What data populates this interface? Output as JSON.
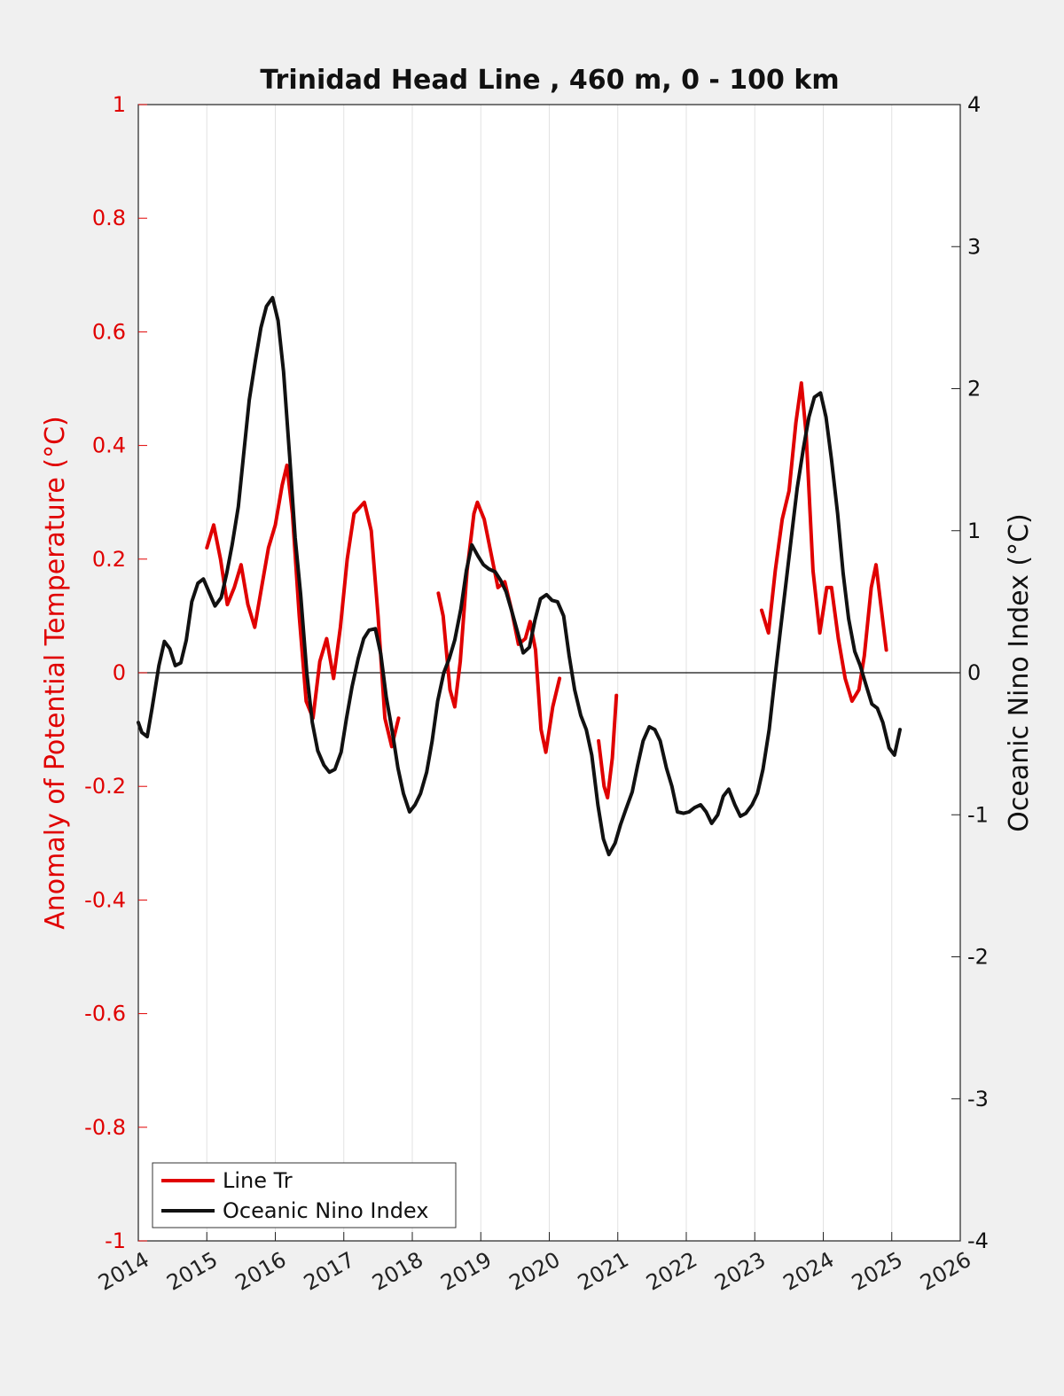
{
  "chart_data": {
    "type": "line",
    "title": "Trinidad Head Line , 460 m, 0 - 100 km",
    "ylabel_left": "Anomaly of Potential Temperature (°C)",
    "ylabel_right": "Oceanic Nino Index (°C)",
    "xlabel": "",
    "xlim": [
      2014,
      2026
    ],
    "ylim_left": [
      -1,
      1
    ],
    "ylim_right": [
      -4,
      4
    ],
    "x_ticks": [
      "2014",
      "2015",
      "2016",
      "2017",
      "2018",
      "2019",
      "2020",
      "2021",
      "2022",
      "2023",
      "2024",
      "2025",
      "2026"
    ],
    "y_ticks_left": [
      "1",
      "0.8",
      "0.6",
      "0.4",
      "0.2",
      "0",
      "-0.2",
      "-0.4",
      "-0.6",
      "-0.8",
      "-1"
    ],
    "y_ticks_right": [
      "4",
      "3",
      "2",
      "1",
      "0",
      "-1",
      "-2",
      "-3",
      "-4"
    ],
    "grid": "vertical",
    "zero_line": true,
    "legend_position": "bottom-left",
    "series": [
      {
        "name": "Line Tr",
        "axis": "left",
        "color": "#e00000",
        "segments": [
          [
            [
              2015.0,
              0.22
            ],
            [
              2015.1,
              0.26
            ],
            [
              2015.2,
              0.2
            ],
            [
              2015.3,
              0.12
            ],
            [
              2015.4,
              0.15
            ],
            [
              2015.5,
              0.19
            ],
            [
              2015.6,
              0.12
            ],
            [
              2015.7,
              0.08
            ],
            [
              2015.8,
              0.15
            ],
            [
              2015.9,
              0.22
            ],
            [
              2016.0,
              0.26
            ],
            [
              2016.1,
              0.33
            ],
            [
              2016.17,
              0.365
            ],
            [
              2016.25,
              0.28
            ],
            [
              2016.35,
              0.1
            ],
            [
              2016.45,
              -0.05
            ],
            [
              2016.55,
              -0.08
            ],
            [
              2016.65,
              0.02
            ],
            [
              2016.75,
              0.06
            ],
            [
              2016.85,
              -0.01
            ],
            [
              2016.95,
              0.08
            ],
            [
              2017.05,
              0.2
            ],
            [
              2017.15,
              0.28
            ],
            [
              2017.3,
              0.3
            ],
            [
              2017.4,
              0.25
            ],
            [
              2017.5,
              0.1
            ],
            [
              2017.6,
              -0.08
            ],
            [
              2017.7,
              -0.13
            ],
            [
              2017.8,
              -0.08
            ]
          ],
          [
            [
              2018.38,
              0.14
            ],
            [
              2018.45,
              0.1
            ],
            [
              2018.55,
              -0.03
            ],
            [
              2018.62,
              -0.06
            ],
            [
              2018.7,
              0.02
            ],
            [
              2018.8,
              0.18
            ],
            [
              2018.9,
              0.28
            ],
            [
              2018.95,
              0.3
            ],
            [
              2019.05,
              0.27
            ],
            [
              2019.15,
              0.21
            ],
            [
              2019.25,
              0.15
            ],
            [
              2019.35,
              0.16
            ],
            [
              2019.45,
              0.11
            ],
            [
              2019.55,
              0.05
            ],
            [
              2019.65,
              0.06
            ],
            [
              2019.72,
              0.09
            ],
            [
              2019.8,
              0.04
            ],
            [
              2019.88,
              -0.1
            ],
            [
              2019.95,
              -0.14
            ],
            [
              2020.05,
              -0.06
            ],
            [
              2020.15,
              -0.01
            ]
          ],
          [
            [
              2020.72,
              -0.12
            ],
            [
              2020.8,
              -0.2
            ],
            [
              2020.85,
              -0.22
            ],
            [
              2020.92,
              -0.15
            ],
            [
              2020.98,
              -0.04
            ]
          ],
          [
            [
              2023.1,
              0.11
            ],
            [
              2023.2,
              0.07
            ],
            [
              2023.3,
              0.18
            ],
            [
              2023.4,
              0.27
            ],
            [
              2023.5,
              0.32
            ],
            [
              2023.6,
              0.44
            ],
            [
              2023.68,
              0.51
            ],
            [
              2023.75,
              0.42
            ],
            [
              2023.85,
              0.18
            ],
            [
              2023.95,
              0.07
            ],
            [
              2024.05,
              0.15
            ],
            [
              2024.12,
              0.15
            ],
            [
              2024.22,
              0.06
            ],
            [
              2024.32,
              -0.01
            ],
            [
              2024.42,
              -0.05
            ],
            [
              2024.52,
              -0.03
            ],
            [
              2024.6,
              0.03
            ],
            [
              2024.7,
              0.15
            ],
            [
              2024.77,
              0.19
            ],
            [
              2024.84,
              0.12
            ],
            [
              2024.92,
              0.04
            ]
          ]
        ]
      },
      {
        "name": "Oceanic Nino Index",
        "axis": "right",
        "color": "#111111",
        "segments": [
          [
            [
              2014.0,
              -0.35
            ],
            [
              2014.05,
              -0.42
            ],
            [
              2014.13,
              -0.45
            ],
            [
              2014.2,
              -0.25
            ],
            [
              2014.3,
              0.05
            ],
            [
              2014.38,
              0.22
            ],
            [
              2014.46,
              0.17
            ],
            [
              2014.54,
              0.05
            ],
            [
              2014.62,
              0.07
            ],
            [
              2014.7,
              0.23
            ],
            [
              2014.78,
              0.5
            ],
            [
              2014.87,
              0.63
            ],
            [
              2014.95,
              0.66
            ],
            [
              2015.04,
              0.56
            ],
            [
              2015.12,
              0.47
            ],
            [
              2015.21,
              0.53
            ],
            [
              2015.29,
              0.7
            ],
            [
              2015.37,
              0.9
            ],
            [
              2015.46,
              1.17
            ],
            [
              2015.54,
              1.55
            ],
            [
              2015.62,
              1.92
            ],
            [
              2015.71,
              2.2
            ],
            [
              2015.79,
              2.43
            ],
            [
              2015.87,
              2.58
            ],
            [
              2015.96,
              2.64
            ],
            [
              2016.04,
              2.48
            ],
            [
              2016.12,
              2.12
            ],
            [
              2016.21,
              1.52
            ],
            [
              2016.29,
              0.95
            ],
            [
              2016.37,
              0.55
            ],
            [
              2016.46,
              0.0
            ],
            [
              2016.54,
              -0.35
            ],
            [
              2016.62,
              -0.55
            ],
            [
              2016.71,
              -0.65
            ],
            [
              2016.79,
              -0.7
            ],
            [
              2016.87,
              -0.68
            ],
            [
              2016.96,
              -0.56
            ],
            [
              2017.04,
              -0.32
            ],
            [
              2017.12,
              -0.1
            ],
            [
              2017.21,
              0.1
            ],
            [
              2017.29,
              0.24
            ],
            [
              2017.37,
              0.3
            ],
            [
              2017.46,
              0.31
            ],
            [
              2017.54,
              0.13
            ],
            [
              2017.62,
              -0.17
            ],
            [
              2017.71,
              -0.42
            ],
            [
              2017.79,
              -0.67
            ],
            [
              2017.87,
              -0.85
            ],
            [
              2017.96,
              -0.98
            ],
            [
              2018.04,
              -0.93
            ],
            [
              2018.12,
              -0.85
            ],
            [
              2018.21,
              -0.7
            ],
            [
              2018.29,
              -0.48
            ],
            [
              2018.37,
              -0.2
            ],
            [
              2018.46,
              0.0
            ],
            [
              2018.54,
              0.1
            ],
            [
              2018.62,
              0.23
            ],
            [
              2018.71,
              0.45
            ],
            [
              2018.79,
              0.72
            ],
            [
              2018.87,
              0.9
            ],
            [
              2018.96,
              0.82
            ],
            [
              2019.04,
              0.76
            ],
            [
              2019.12,
              0.73
            ],
            [
              2019.21,
              0.71
            ],
            [
              2019.29,
              0.65
            ],
            [
              2019.37,
              0.57
            ],
            [
              2019.46,
              0.42
            ],
            [
              2019.54,
              0.28
            ],
            [
              2019.62,
              0.14
            ],
            [
              2019.71,
              0.18
            ],
            [
              2019.79,
              0.37
            ],
            [
              2019.87,
              0.52
            ],
            [
              2019.96,
              0.55
            ],
            [
              2020.04,
              0.51
            ],
            [
              2020.12,
              0.5
            ],
            [
              2020.21,
              0.4
            ],
            [
              2020.29,
              0.12
            ],
            [
              2020.37,
              -0.12
            ],
            [
              2020.46,
              -0.3
            ],
            [
              2020.54,
              -0.4
            ],
            [
              2020.62,
              -0.58
            ],
            [
              2020.71,
              -0.93
            ],
            [
              2020.79,
              -1.17
            ],
            [
              2020.87,
              -1.28
            ],
            [
              2020.96,
              -1.2
            ],
            [
              2021.04,
              -1.07
            ],
            [
              2021.12,
              -0.96
            ],
            [
              2021.21,
              -0.84
            ],
            [
              2021.29,
              -0.65
            ],
            [
              2021.37,
              -0.48
            ],
            [
              2021.46,
              -0.38
            ],
            [
              2021.54,
              -0.4
            ],
            [
              2021.62,
              -0.48
            ],
            [
              2021.71,
              -0.67
            ],
            [
              2021.79,
              -0.8
            ],
            [
              2021.87,
              -0.98
            ],
            [
              2021.96,
              -0.99
            ],
            [
              2022.04,
              -0.98
            ],
            [
              2022.12,
              -0.95
            ],
            [
              2022.21,
              -0.93
            ],
            [
              2022.29,
              -0.98
            ],
            [
              2022.37,
              -1.06
            ],
            [
              2022.46,
              -1.0
            ],
            [
              2022.54,
              -0.87
            ],
            [
              2022.62,
              -0.82
            ],
            [
              2022.71,
              -0.93
            ],
            [
              2022.79,
              -1.01
            ],
            [
              2022.87,
              -0.99
            ],
            [
              2022.96,
              -0.93
            ],
            [
              2023.04,
              -0.85
            ],
            [
              2023.12,
              -0.68
            ],
            [
              2023.21,
              -0.4
            ],
            [
              2023.29,
              -0.05
            ],
            [
              2023.37,
              0.28
            ],
            [
              2023.46,
              0.65
            ],
            [
              2023.54,
              0.98
            ],
            [
              2023.62,
              1.3
            ],
            [
              2023.71,
              1.58
            ],
            [
              2023.79,
              1.8
            ],
            [
              2023.87,
              1.94
            ],
            [
              2023.96,
              1.97
            ],
            [
              2024.04,
              1.8
            ],
            [
              2024.12,
              1.5
            ],
            [
              2024.21,
              1.12
            ],
            [
              2024.29,
              0.7
            ],
            [
              2024.37,
              0.38
            ],
            [
              2024.46,
              0.15
            ],
            [
              2024.54,
              0.05
            ],
            [
              2024.62,
              -0.08
            ],
            [
              2024.71,
              -0.22
            ],
            [
              2024.79,
              -0.25
            ],
            [
              2024.87,
              -0.35
            ],
            [
              2024.96,
              -0.53
            ],
            [
              2025.04,
              -0.58
            ],
            [
              2025.12,
              -0.4
            ]
          ]
        ]
      }
    ]
  }
}
